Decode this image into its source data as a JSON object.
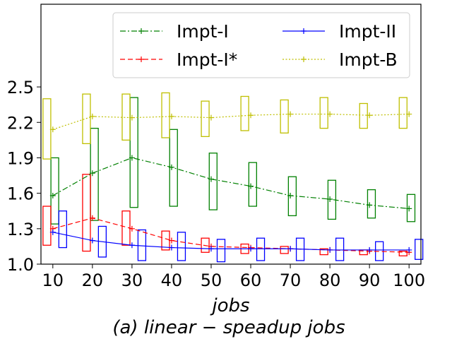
{
  "chart_data": {
    "type": "line",
    "xlabel": "jobs",
    "caption": "(a) linear − speadup jobs",
    "ylabel": "",
    "xlim": [
      7,
      103
    ],
    "ylim": [
      1.0,
      3.2
    ],
    "xticks": [
      10,
      20,
      30,
      40,
      50,
      60,
      70,
      80,
      90,
      100
    ],
    "yticks": [
      1.0,
      1.3,
      1.6,
      1.9,
      2.2,
      2.5
    ],
    "ytick_labels": [
      "1.0",
      "1.3",
      "1.6",
      "1.9",
      "2.2",
      "2.5"
    ],
    "legend": {
      "placement": "top-right",
      "columns": 2
    },
    "series": [
      {
        "name": "Impt-I",
        "color": "#008000",
        "dash": "dashdot",
        "x": [
          10,
          20,
          30,
          40,
          50,
          60,
          70,
          80,
          90,
          100
        ],
        "values": [
          1.58,
          1.77,
          1.9,
          1.82,
          1.72,
          1.66,
          1.58,
          1.55,
          1.5,
          1.47
        ],
        "boxes": [
          {
            "x": 10.5,
            "low": 1.34,
            "high": 1.9
          },
          {
            "x": 20.5,
            "low": 1.37,
            "high": 2.15
          },
          {
            "x": 30.5,
            "low": 1.48,
            "high": 2.41
          },
          {
            "x": 40.5,
            "low": 1.49,
            "high": 2.14
          },
          {
            "x": 50.5,
            "low": 1.46,
            "high": 1.94
          },
          {
            "x": 60.5,
            "low": 1.49,
            "high": 1.86
          },
          {
            "x": 70.5,
            "low": 1.41,
            "high": 1.74
          },
          {
            "x": 80.5,
            "low": 1.38,
            "high": 1.71
          },
          {
            "x": 90.5,
            "low": 1.39,
            "high": 1.63
          },
          {
            "x": 100.5,
            "low": 1.36,
            "high": 1.59
          }
        ]
      },
      {
        "name": "Impt-I*",
        "color": "#ff0000",
        "dash": "dashed",
        "x": [
          10,
          20,
          30,
          40,
          50,
          60,
          70,
          80,
          90,
          100
        ],
        "values": [
          1.3,
          1.39,
          1.3,
          1.2,
          1.15,
          1.14,
          1.13,
          1.12,
          1.11,
          1.1
        ],
        "boxes": [
          {
            "x": 8.5,
            "low": 1.16,
            "high": 1.49
          },
          {
            "x": 18.5,
            "low": 1.11,
            "high": 1.76
          },
          {
            "x": 28.5,
            "low": 1.16,
            "high": 1.45
          },
          {
            "x": 38.5,
            "low": 1.12,
            "high": 1.28
          },
          {
            "x": 48.5,
            "low": 1.1,
            "high": 1.22
          },
          {
            "x": 58.5,
            "low": 1.09,
            "high": 1.17
          },
          {
            "x": 68.5,
            "low": 1.09,
            "high": 1.15
          },
          {
            "x": 78.5,
            "low": 1.08,
            "high": 1.13
          },
          {
            "x": 88.5,
            "low": 1.08,
            "high": 1.12
          },
          {
            "x": 98.5,
            "low": 1.07,
            "high": 1.11
          }
        ]
      },
      {
        "name": "Impt-II",
        "color": "#0000ff",
        "dash": "solid",
        "x": [
          10,
          20,
          30,
          40,
          50,
          60,
          70,
          80,
          90,
          100
        ],
        "values": [
          1.27,
          1.2,
          1.16,
          1.14,
          1.13,
          1.13,
          1.13,
          1.12,
          1.12,
          1.12
        ],
        "boxes": [
          {
            "x": 12.5,
            "low": 1.14,
            "high": 1.45
          },
          {
            "x": 22.5,
            "low": 1.06,
            "high": 1.32
          },
          {
            "x": 32.5,
            "low": 1.03,
            "high": 1.29
          },
          {
            "x": 42.5,
            "low": 1.03,
            "high": 1.27
          },
          {
            "x": 52.5,
            "low": 1.02,
            "high": 1.21
          },
          {
            "x": 62.5,
            "low": 1.03,
            "high": 1.22
          },
          {
            "x": 72.5,
            "low": 1.03,
            "high": 1.22
          },
          {
            "x": 82.5,
            "low": 1.03,
            "high": 1.22
          },
          {
            "x": 92.5,
            "low": 1.03,
            "high": 1.19
          },
          {
            "x": 102.5,
            "low": 1.04,
            "high": 1.21
          }
        ]
      },
      {
        "name": "Impt-B",
        "color": "#bfbf00",
        "dash": "dotted",
        "x": [
          10,
          20,
          30,
          40,
          50,
          60,
          70,
          80,
          90,
          100
        ],
        "values": [
          2.14,
          2.25,
          2.24,
          2.25,
          2.24,
          2.26,
          2.27,
          2.27,
          2.26,
          2.27
        ],
        "boxes": [
          {
            "x": 8.5,
            "low": 1.89,
            "high": 2.4
          },
          {
            "x": 18.5,
            "low": 2.02,
            "high": 2.44
          },
          {
            "x": 28.5,
            "low": 2.05,
            "high": 2.44
          },
          {
            "x": 38.5,
            "low": 2.07,
            "high": 2.45
          },
          {
            "x": 48.5,
            "low": 2.08,
            "high": 2.38
          },
          {
            "x": 58.5,
            "low": 2.13,
            "high": 2.42
          },
          {
            "x": 68.5,
            "low": 2.11,
            "high": 2.39
          },
          {
            "x": 78.5,
            "low": 2.15,
            "high": 2.41
          },
          {
            "x": 88.5,
            "low": 2.15,
            "high": 2.36
          },
          {
            "x": 98.5,
            "low": 2.15,
            "high": 2.41
          }
        ]
      }
    ]
  }
}
